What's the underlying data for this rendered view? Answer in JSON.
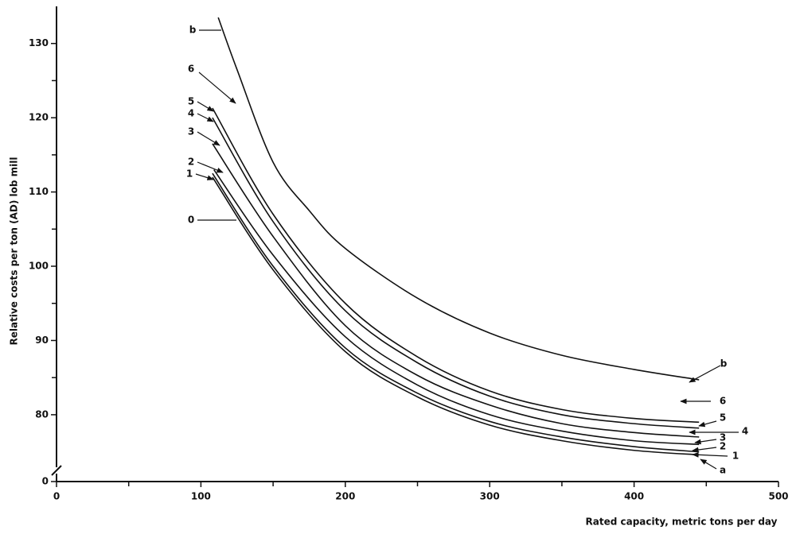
{
  "chart_data": {
    "type": "line",
    "x_label": "Rated capacity,  metric tons per day",
    "y_label": "Relative costs per ton (AD) lob mill",
    "xlim": [
      0,
      500
    ],
    "xticks": [
      0,
      100,
      200,
      300,
      400,
      500
    ],
    "xminor_ticks": [
      50,
      150,
      250,
      350,
      450
    ],
    "ylim": [
      0,
      135
    ],
    "y_break": [
      0,
      71
    ],
    "yticks": [
      0,
      80,
      90,
      100,
      110,
      120,
      130
    ],
    "yminor_ticks": [
      85,
      95,
      105,
      115,
      125
    ],
    "color": "#111111",
    "series": [
      {
        "name": "b",
        "x": [
          112,
          125,
          150,
          175,
          200,
          250,
          300,
          350,
          400,
          445
        ],
        "values": [
          133.5,
          126.5,
          114,
          107.5,
          102.4,
          95.7,
          91,
          88,
          86.1,
          84.7
        ]
      },
      {
        "name": "5",
        "x": [
          108,
          150,
          200,
          250,
          300,
          350,
          400,
          445
        ],
        "values": [
          121.3,
          107,
          95,
          87.8,
          83.2,
          80.7,
          79.5,
          79
        ]
      },
      {
        "name": "4",
        "x": [
          108,
          150,
          200,
          250,
          300,
          350,
          400,
          445
        ],
        "values": [
          120,
          106,
          94,
          87,
          82.5,
          80,
          78.8,
          78.2
        ]
      },
      {
        "name": "3",
        "x": [
          108,
          150,
          200,
          250,
          300,
          350,
          400,
          445
        ],
        "values": [
          116.5,
          104,
          92,
          85.3,
          81.3,
          78.8,
          77.6,
          77
        ]
      },
      {
        "name": "2",
        "x": [
          109,
          150,
          200,
          250,
          300,
          350,
          400,
          445
        ],
        "values": [
          113,
          101.5,
          90.5,
          84,
          80,
          77.8,
          76.5,
          76
        ]
      },
      {
        "name": "1",
        "x": [
          108,
          150,
          200,
          250,
          300,
          350,
          400,
          445
        ],
        "values": [
          112.5,
          100,
          89,
          82.9,
          79.1,
          77,
          75.7,
          75
        ]
      },
      {
        "name": "0",
        "x": [
          108,
          150,
          200,
          250,
          300,
          350,
          400,
          445
        ],
        "values": [
          112,
          99.5,
          88.5,
          82.4,
          78.6,
          76.5,
          75.2,
          74.6
        ]
      }
    ],
    "annotations_left_extra": [
      "6"
    ],
    "annotations_right": [
      "b",
      "6",
      "5",
      "4",
      "3",
      "2",
      "1",
      "a"
    ]
  }
}
